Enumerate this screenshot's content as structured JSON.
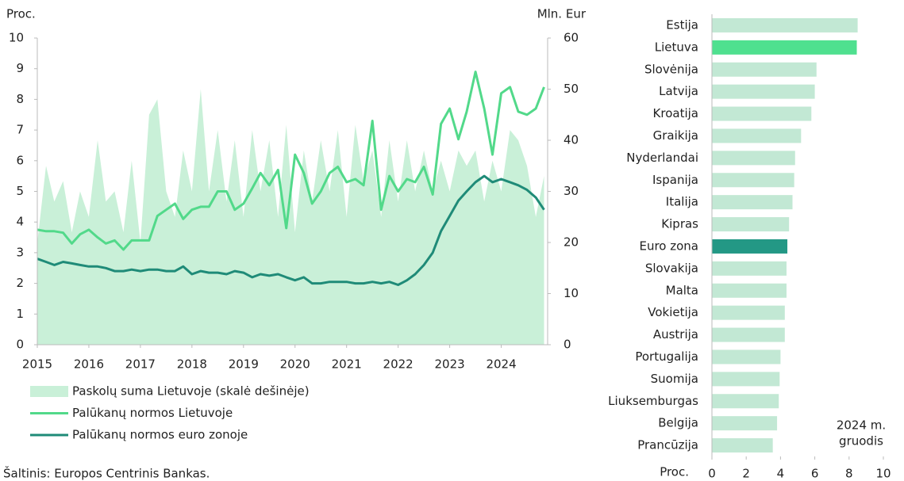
{
  "chart_data": [
    {
      "type": "line",
      "ylabel": "Proc.",
      "y2label": "Mln. Eur",
      "source": "Šaltinis: Europos Centrinis Bankas.",
      "x": [
        2015,
        2015.17,
        2015.33,
        2015.5,
        2015.67,
        2015.83,
        2016,
        2016.17,
        2016.33,
        2016.5,
        2016.67,
        2016.83,
        2017,
        2017.17,
        2017.33,
        2017.5,
        2017.67,
        2017.83,
        2018,
        2018.17,
        2018.33,
        2018.5,
        2018.67,
        2018.83,
        2019,
        2019.17,
        2019.33,
        2019.5,
        2019.67,
        2019.83,
        2020,
        2020.17,
        2020.33,
        2020.5,
        2020.67,
        2020.83,
        2021,
        2021.17,
        2021.33,
        2021.5,
        2021.67,
        2021.83,
        2022,
        2022.17,
        2022.33,
        2022.5,
        2022.67,
        2022.83,
        2023,
        2023.17,
        2023.33,
        2023.5,
        2023.67,
        2023.83,
        2024,
        2024.17,
        2024.33,
        2024.5,
        2024.67,
        2024.83
      ],
      "xlim": [
        2015,
        2024.9
      ],
      "xticks": [
        2015,
        2016,
        2017,
        2018,
        2019,
        2020,
        2021,
        2022,
        2023,
        2024
      ],
      "ylim": [
        0,
        10
      ],
      "yticks": [
        0,
        1,
        2,
        3,
        4,
        5,
        6,
        7,
        8,
        9,
        10
      ],
      "y2lim": [
        0,
        60
      ],
      "y2ticks": [
        0,
        10,
        20,
        30,
        40,
        50,
        60
      ],
      "series": [
        {
          "name": "Paskolų suma Lietuvoje (skalė dešinėje)",
          "type": "area",
          "axis": "y2",
          "color": "#c9f0d8",
          "values": [
            20,
            35,
            28,
            32,
            22,
            30,
            25,
            40,
            28,
            30,
            22,
            36,
            20,
            45,
            48,
            30,
            25,
            38,
            30,
            50,
            30,
            42,
            28,
            40,
            25,
            42,
            30,
            40,
            25,
            43,
            22,
            38,
            28,
            40,
            30,
            42,
            25,
            43,
            32,
            38,
            25,
            40,
            28,
            40,
            30,
            38,
            30,
            36,
            30,
            38,
            35,
            38,
            28,
            36,
            30,
            42,
            40,
            35,
            25,
            33
          ]
        },
        {
          "name": "Palūkanų normos Lietuvoje",
          "type": "line",
          "color": "#52d98a",
          "values": [
            3.75,
            3.7,
            3.7,
            3.65,
            3.3,
            3.6,
            3.75,
            3.5,
            3.3,
            3.4,
            3.1,
            3.4,
            3.4,
            3.4,
            4.2,
            4.4,
            4.6,
            4.1,
            4.4,
            4.5,
            4.5,
            5.0,
            5.0,
            4.4,
            4.6,
            5.1,
            5.6,
            5.2,
            5.7,
            3.8,
            6.2,
            5.6,
            4.6,
            5.0,
            5.6,
            5.8,
            5.3,
            5.4,
            5.2,
            7.3,
            4.4,
            5.5,
            5.0,
            5.4,
            5.3,
            5.8,
            4.9,
            7.2,
            7.7,
            6.7,
            7.6,
            8.9,
            7.7,
            6.2,
            8.2,
            8.4,
            7.6,
            7.5,
            7.7,
            8.4
          ]
        },
        {
          "name": "Palūkanų normos euro zonoje",
          "type": "line",
          "color": "#1f8b78",
          "values": [
            2.8,
            2.7,
            2.6,
            2.7,
            2.65,
            2.6,
            2.55,
            2.55,
            2.5,
            2.4,
            2.4,
            2.45,
            2.4,
            2.45,
            2.45,
            2.4,
            2.4,
            2.55,
            2.3,
            2.4,
            2.35,
            2.35,
            2.3,
            2.4,
            2.35,
            2.2,
            2.3,
            2.25,
            2.3,
            2.2,
            2.1,
            2.2,
            2.0,
            2.0,
            2.05,
            2.05,
            2.05,
            2.0,
            2.0,
            2.05,
            2.0,
            2.05,
            1.95,
            2.1,
            2.3,
            2.6,
            3.0,
            3.7,
            4.2,
            4.7,
            5.0,
            5.3,
            5.5,
            5.3,
            5.4,
            5.3,
            5.2,
            5.05,
            4.8,
            4.4
          ]
        }
      ]
    },
    {
      "type": "hbar",
      "xlabel": "Proc.",
      "annotation": [
        "2024 m.",
        "gruodis"
      ],
      "categories": [
        "Estija",
        "Lietuva",
        "Slovėnija",
        "Latvija",
        "Kroatija",
        "Graikija",
        "Nyderlandai",
        "Ispanija",
        "Italija",
        "Kipras",
        "Euro zona",
        "Slovakija",
        "Malta",
        "Vokietija",
        "Austrija",
        "Portugalija",
        "Suomija",
        "Liuksemburgas",
        "Belgija",
        "Prancūzija"
      ],
      "values": [
        8.5,
        8.45,
        6.1,
        6.0,
        5.8,
        5.2,
        4.85,
        4.8,
        4.7,
        4.5,
        4.4,
        4.35,
        4.35,
        4.25,
        4.25,
        4.0,
        3.95,
        3.9,
        3.8,
        3.55
      ],
      "colors": [
        "#c2e8d4",
        "#4fe08f",
        "#c2e8d4",
        "#c2e8d4",
        "#c2e8d4",
        "#c2e8d4",
        "#c2e8d4",
        "#c2e8d4",
        "#c2e8d4",
        "#c2e8d4",
        "#239885",
        "#c2e8d4",
        "#c2e8d4",
        "#c2e8d4",
        "#c2e8d4",
        "#c2e8d4",
        "#c2e8d4",
        "#c2e8d4",
        "#c2e8d4",
        "#c2e8d4"
      ],
      "xlim": [
        0,
        10
      ],
      "xticks": [
        0,
        2,
        4,
        6,
        8,
        10
      ]
    }
  ]
}
